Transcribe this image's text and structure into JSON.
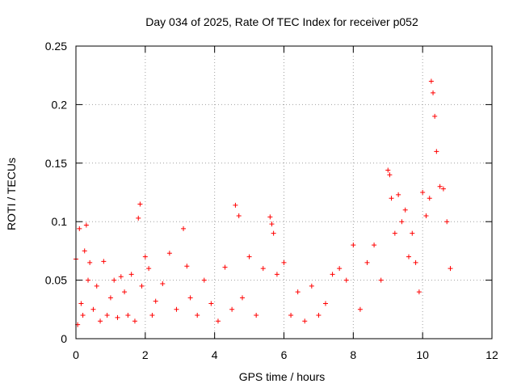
{
  "chart_data": {
    "type": "scatter",
    "title": "Day 034 of 2025, Rate Of TEC Index for receiver p052",
    "xlabel": "GPS time / hours",
    "ylabel": "ROTI / TECUs",
    "xlim": [
      0,
      12
    ],
    "ylim": [
      0,
      0.25
    ],
    "xticks": [
      0,
      2,
      4,
      6,
      8,
      10,
      12
    ],
    "xtick_labels": [
      "0",
      "2",
      "4",
      "6",
      "8",
      "10",
      "12"
    ],
    "yticks": [
      0,
      0.05,
      0.1,
      0.15,
      0.2,
      0.25
    ],
    "ytick_labels": [
      "0",
      "0.05",
      "0.1",
      "0.15",
      "0.2",
      "0.25"
    ],
    "grid": true,
    "marker": "+",
    "series": [
      {
        "name": "ROTI",
        "color": "#ff0000",
        "x": [
          0.0,
          0.05,
          0.1,
          0.15,
          0.2,
          0.25,
          0.3,
          0.35,
          0.4,
          0.5,
          0.6,
          0.7,
          0.8,
          0.9,
          1.0,
          1.1,
          1.2,
          1.3,
          1.4,
          1.5,
          1.6,
          1.7,
          1.8,
          1.85,
          1.9,
          2.0,
          2.1,
          2.2,
          2.3,
          2.5,
          2.7,
          2.9,
          3.1,
          3.2,
          3.3,
          3.5,
          3.7,
          3.9,
          4.1,
          4.3,
          4.5,
          4.6,
          4.7,
          4.8,
          5.0,
          5.2,
          5.4,
          5.6,
          5.65,
          5.7,
          5.8,
          6.0,
          6.2,
          6.4,
          6.6,
          6.8,
          7.0,
          7.2,
          7.4,
          7.6,
          7.8,
          8.0,
          8.2,
          8.4,
          8.6,
          8.8,
          9.0,
          9.05,
          9.1,
          9.2,
          9.3,
          9.4,
          9.5,
          9.6,
          9.7,
          9.8,
          9.9,
          10.0,
          10.1,
          10.2,
          10.25,
          10.3,
          10.35,
          10.4,
          10.5,
          10.6,
          10.7,
          10.8
        ],
        "y": [
          0.068,
          0.012,
          0.094,
          0.03,
          0.02,
          0.075,
          0.097,
          0.05,
          0.065,
          0.025,
          0.045,
          0.015,
          0.066,
          0.02,
          0.035,
          0.05,
          0.018,
          0.053,
          0.04,
          0.02,
          0.055,
          0.015,
          0.103,
          0.115,
          0.045,
          0.07,
          0.06,
          0.02,
          0.032,
          0.047,
          0.073,
          0.025,
          0.094,
          0.062,
          0.035,
          0.02,
          0.05,
          0.03,
          0.015,
          0.061,
          0.025,
          0.114,
          0.105,
          0.035,
          0.07,
          0.02,
          0.06,
          0.104,
          0.098,
          0.09,
          0.055,
          0.065,
          0.02,
          0.04,
          0.015,
          0.045,
          0.02,
          0.03,
          0.055,
          0.06,
          0.05,
          0.08,
          0.025,
          0.065,
          0.08,
          0.05,
          0.144,
          0.14,
          0.12,
          0.09,
          0.123,
          0.1,
          0.11,
          0.07,
          0.09,
          0.065,
          0.04,
          0.125,
          0.105,
          0.12,
          0.22,
          0.21,
          0.19,
          0.16,
          0.13,
          0.128,
          0.1,
          0.06
        ]
      }
    ]
  }
}
